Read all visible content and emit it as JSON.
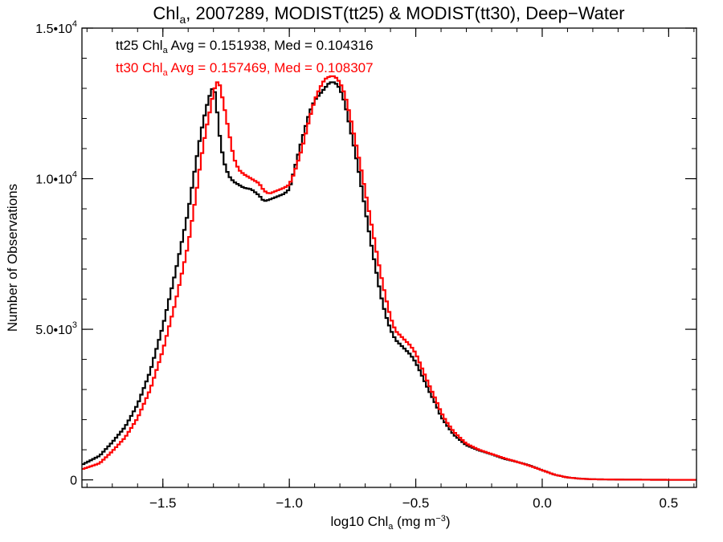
{
  "chart_data": {
    "type": "line",
    "title": {
      "prefix": "Chl",
      "sub": "a",
      "rest": ", 2007289, MODIST(tt25) & MODIST(tt30), Deep−Water"
    },
    "xlabel": {
      "prefix": "log10 Chl",
      "sub": "a",
      "rest": " (mg m",
      "sup": "−3",
      "close": ")"
    },
    "ylabel": "Number of Observations",
    "xlim": [
      -1.82,
      0.61
    ],
    "ylim": [
      -250,
      15000
    ],
    "x_ticks": [
      {
        "v": -1.5,
        "label": "−1.5"
      },
      {
        "v": -1.0,
        "label": "−1.0"
      },
      {
        "v": -0.5,
        "label": "−0.5"
      },
      {
        "v": 0.0,
        "label": "0.0"
      },
      {
        "v": 0.5,
        "label": "0.5"
      }
    ],
    "x_minor_step": 0.1,
    "y_ticks": [
      {
        "v": 0,
        "base": "0",
        "exp": ""
      },
      {
        "v": 5000,
        "base": "5.0•10",
        "exp": "3"
      },
      {
        "v": 10000,
        "base": "1.0•10",
        "exp": "4"
      },
      {
        "v": 15000,
        "base": "1.5•10",
        "exp": "4"
      }
    ],
    "y_minor_step": 1000,
    "annotations": [
      {
        "prefix": "tt25 Chl",
        "sub": "a",
        "rest": " Avg = 0.151938, Med = 0.104316",
        "color": "#000000"
      },
      {
        "prefix": "tt30 Chl",
        "sub": "a",
        "rest": " Avg = 0.157469, Med = 0.108307",
        "color": "#ff0000"
      }
    ],
    "series": [
      {
        "name": "tt25",
        "color": "#000000",
        "x": [
          -1.82,
          -1.75,
          -1.7,
          -1.65,
          -1.6,
          -1.55,
          -1.5,
          -1.45,
          -1.4,
          -1.37,
          -1.35,
          -1.33,
          -1.31,
          -1.3,
          -1.29,
          -1.28,
          -1.26,
          -1.24,
          -1.22,
          -1.2,
          -1.18,
          -1.15,
          -1.12,
          -1.1,
          -1.08,
          -1.05,
          -1.02,
          -1.0,
          -0.98,
          -0.95,
          -0.92,
          -0.9,
          -0.88,
          -0.86,
          -0.84,
          -0.82,
          -0.8,
          -0.78,
          -0.76,
          -0.74,
          -0.72,
          -0.7,
          -0.68,
          -0.66,
          -0.64,
          -0.62,
          -0.6,
          -0.58,
          -0.55,
          -0.52,
          -0.5,
          -0.48,
          -0.45,
          -0.42,
          -0.4,
          -0.38,
          -0.35,
          -0.3,
          -0.25,
          -0.2,
          -0.15,
          -0.1,
          -0.05,
          0.0,
          0.05,
          0.1,
          0.15,
          0.2,
          0.3,
          0.4,
          0.5,
          0.61
        ],
        "values": [
          500,
          800,
          1250,
          1750,
          2500,
          3600,
          5100,
          6900,
          8900,
          10500,
          11500,
          12300,
          12900,
          13050,
          12700,
          11700,
          10600,
          10100,
          9900,
          9800,
          9700,
          9650,
          9450,
          9250,
          9300,
          9400,
          9500,
          9650,
          10300,
          11300,
          12200,
          12600,
          12800,
          13000,
          13200,
          13200,
          13000,
          12500,
          11700,
          10900,
          10000,
          9000,
          8000,
          7100,
          6200,
          5500,
          5000,
          4650,
          4400,
          4150,
          3900,
          3550,
          3000,
          2500,
          2100,
          1850,
          1500,
          1150,
          980,
          850,
          700,
          600,
          480,
          320,
          170,
          80,
          40,
          20,
          10,
          5,
          2,
          1
        ]
      },
      {
        "name": "tt30",
        "color": "#ff0000",
        "x": [
          -1.82,
          -1.75,
          -1.7,
          -1.65,
          -1.6,
          -1.55,
          -1.5,
          -1.45,
          -1.4,
          -1.37,
          -1.35,
          -1.33,
          -1.31,
          -1.3,
          -1.29,
          -1.28,
          -1.26,
          -1.24,
          -1.22,
          -1.2,
          -1.18,
          -1.15,
          -1.12,
          -1.1,
          -1.08,
          -1.05,
          -1.02,
          -1.0,
          -0.98,
          -0.95,
          -0.92,
          -0.9,
          -0.88,
          -0.86,
          -0.84,
          -0.82,
          -0.8,
          -0.78,
          -0.76,
          -0.74,
          -0.72,
          -0.7,
          -0.68,
          -0.66,
          -0.64,
          -0.62,
          -0.6,
          -0.58,
          -0.55,
          -0.52,
          -0.5,
          -0.48,
          -0.45,
          -0.42,
          -0.4,
          -0.38,
          -0.35,
          -0.3,
          -0.25,
          -0.2,
          -0.15,
          -0.1,
          -0.05,
          0.0,
          0.05,
          0.1,
          0.15,
          0.2,
          0.3,
          0.4,
          0.5,
          0.61
        ],
        "values": [
          350,
          550,
          950,
          1400,
          2050,
          3000,
          4300,
          5900,
          7800,
          9400,
          10600,
          11600,
          12400,
          12900,
          13100,
          13300,
          12500,
          11600,
          10700,
          10300,
          10150,
          10000,
          9850,
          9600,
          9500,
          9600,
          9700,
          9800,
          10200,
          11000,
          12000,
          12600,
          13000,
          13300,
          13400,
          13400,
          13200,
          12800,
          12100,
          11300,
          10500,
          9600,
          8700,
          7800,
          6900,
          6100,
          5400,
          4950,
          4700,
          4450,
          4200,
          3800,
          3200,
          2650,
          2250,
          1950,
          1600,
          1200,
          1000,
          860,
          720,
          600,
          470,
          320,
          170,
          80,
          40,
          20,
          10,
          5,
          2,
          1
        ]
      }
    ]
  }
}
